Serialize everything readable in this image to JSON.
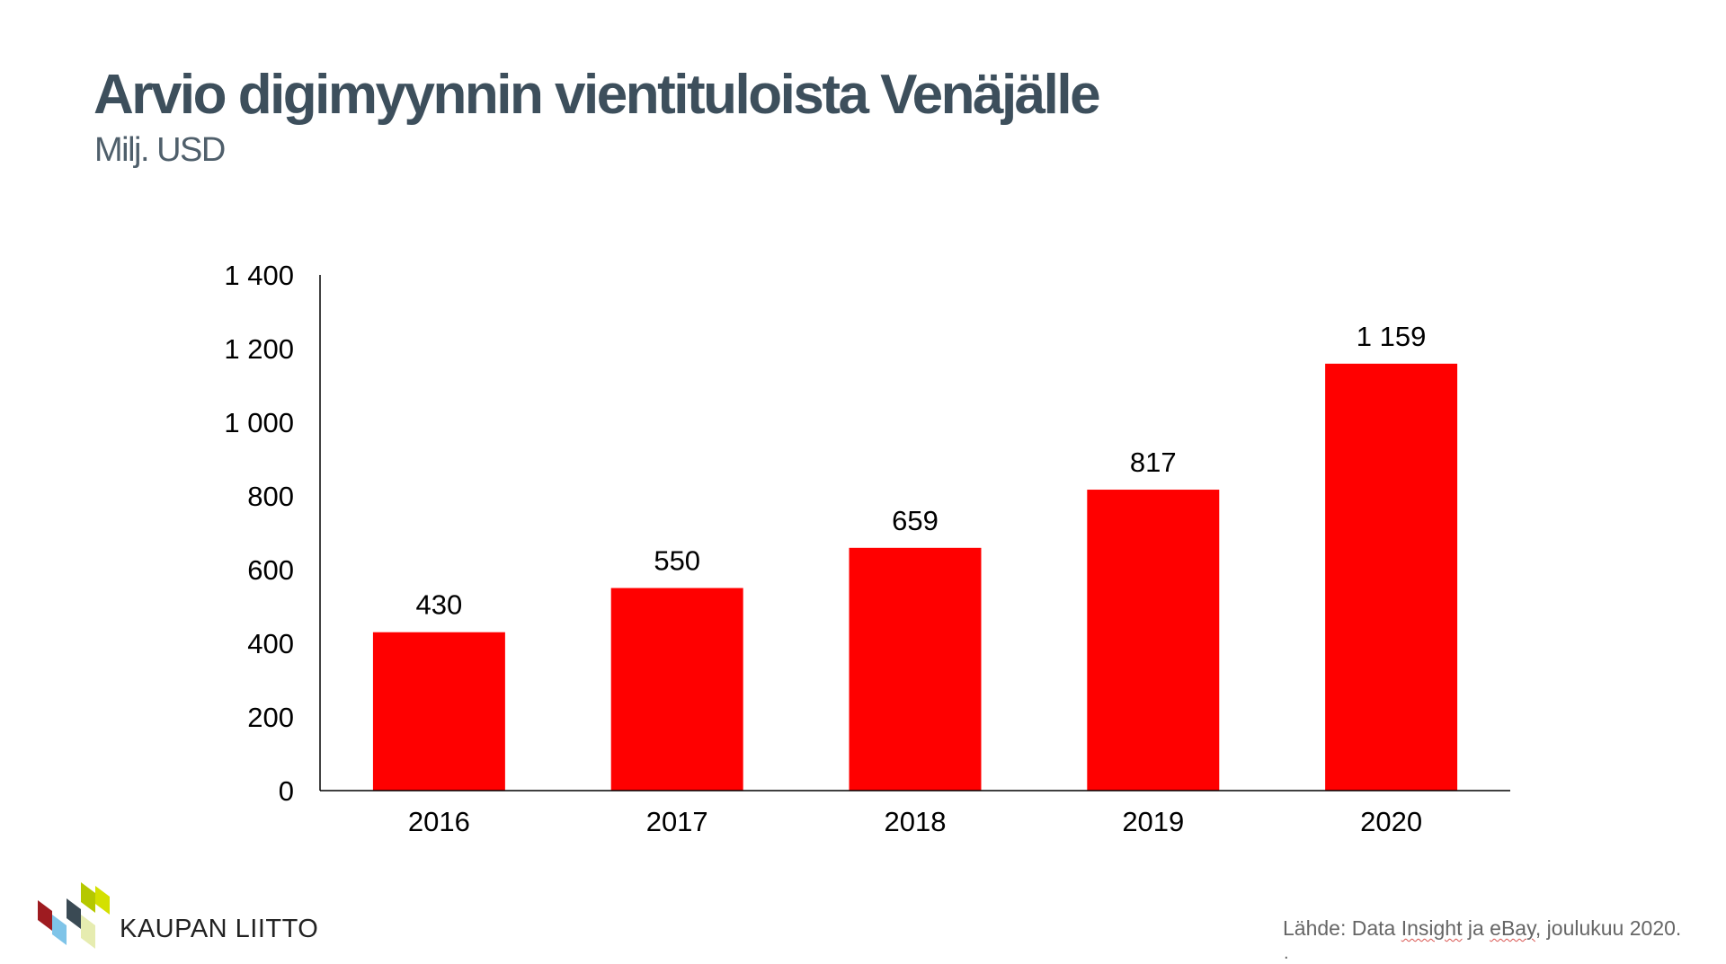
{
  "slide": {
    "title": "Arvio digimyynnin vientituloista Venäjälle",
    "subtitle": "Milj. USD",
    "source": {
      "prefix": "Lähde: Data ",
      "word1": "Insight",
      "mid": " ja ",
      "word2": "eBay",
      "suffix": ", joulukuu 2020."
    },
    "footnote_mark": "."
  },
  "logo": {
    "text": "KAUPAN LIITTO",
    "icon": "kaupan-liitto-logo-icon",
    "colors": [
      "#9e1b20",
      "#3a4a54",
      "#d4e000",
      "#7fc4e8"
    ]
  },
  "chart_data": {
    "type": "bar",
    "categories": [
      "2016",
      "2017",
      "2018",
      "2019",
      "2020"
    ],
    "values": [
      430,
      550,
      659,
      817,
      1159
    ],
    "data_labels": [
      "430",
      "550",
      "659",
      "817",
      "1 159"
    ],
    "ylim": [
      0,
      1400
    ],
    "yticks": [
      0,
      200,
      400,
      600,
      800,
      1000,
      1200,
      1400
    ],
    "ytick_labels": [
      "0",
      "200",
      "400",
      "600",
      "800",
      "1 000",
      "1 200",
      "1 400"
    ],
    "bar_color": "#ff0000",
    "grid": false,
    "legend": "none"
  }
}
